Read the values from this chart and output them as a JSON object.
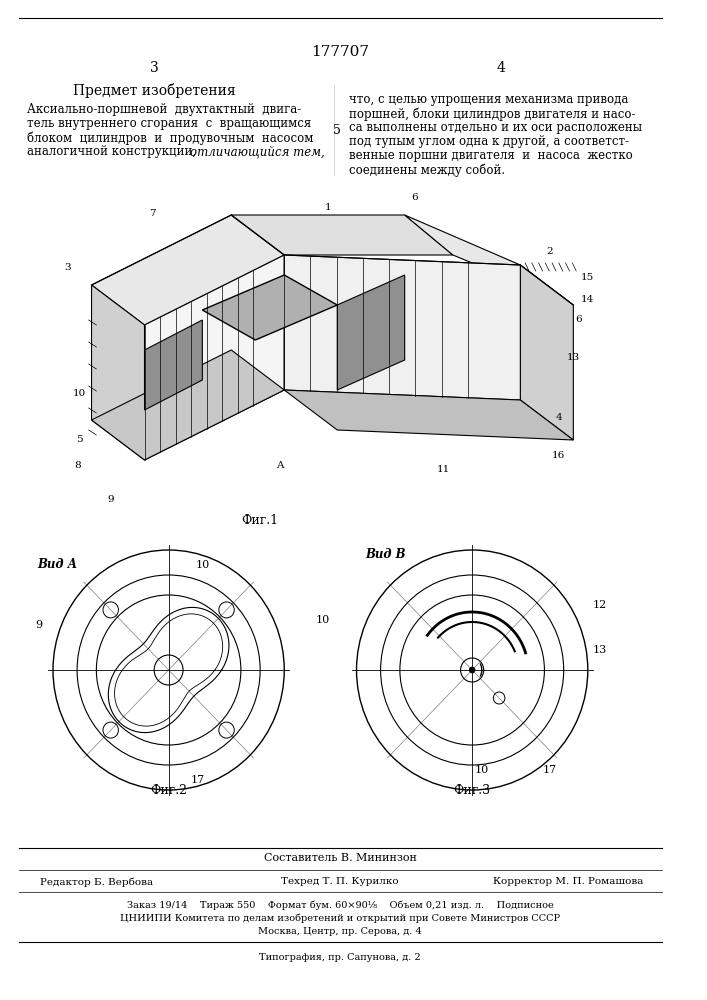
{
  "patent_number": "177707",
  "page_left": "3",
  "page_right": "4",
  "title": "Предмет изобретения",
  "text_left": "Аксиально-поршневой двухтактный двигатель внутреннего сгорания с вращающимся блоком цилиндров и продувочным насосом аналогичной конструкции, отличающийся тем,",
  "text_right": "что, с целью упрощения механизма привода поршней, блоки цилиндров двигателя и насоса выполнены отдельно и их оси расположены под тупым углом одна к другой, а соответственные поршни двигателя и насоса жестко соединены между собой.",
  "fig1_label": "Фиг.1",
  "fig2_label": "Фиг.2",
  "fig3_label": "Фиг.3",
  "view_a_label": "Вид А",
  "view_b_label": "Вид В",
  "line5_number": "5",
  "footer_editor": "Редактор Б. Вербова",
  "footer_tech": "Техред Т. П. Курилко",
  "footer_corrector": "Корректор М. П. Ромашова",
  "footer_info": "Заказ 19/14    Тираж 550    Формат бум. 60×90¹⁄₈    Объем 0,21 изд. л.    Подписное",
  "footer_org": "ЦНИИПИ Комитета по делам изобретений и открытий при Совете Министров СССР",
  "footer_addr": "Москва, Центр, пр. Серова, д. 4",
  "footer_print": "Типография, пр. Сапунова, д. 2",
  "bg_color": "#ffffff",
  "text_color": "#000000"
}
